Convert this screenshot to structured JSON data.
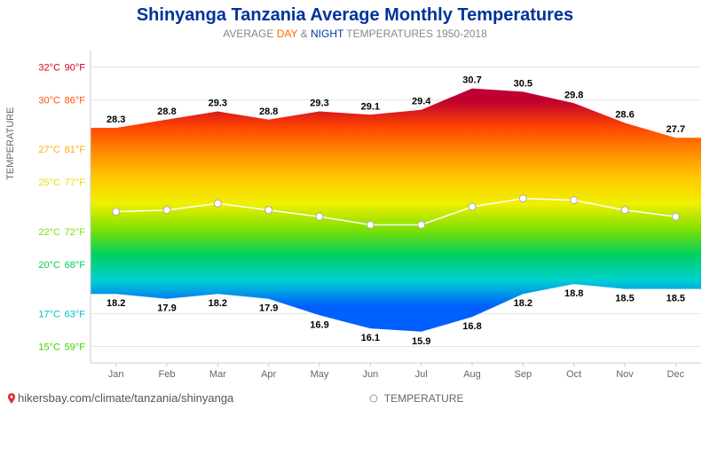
{
  "header": {
    "title": "Shinyanga Tanzania Average Monthly Temperatures",
    "title_color": "#003399",
    "subtitle_prefix": "AVERAGE",
    "subtitle_day": "DAY",
    "subtitle_amp": "&",
    "subtitle_night": "NIGHT",
    "subtitle_suffix": "TEMPERATURES 1950-2018"
  },
  "axis": {
    "ylabel": "TEMPERATURE",
    "yticks": [
      {
        "c": "15°C",
        "f": "59°F",
        "v": 15,
        "color": "#40d000"
      },
      {
        "c": "17°C",
        "f": "63°F",
        "v": 17,
        "color": "#00c0c0"
      },
      {
        "c": "20°C",
        "f": "68°F",
        "v": 20,
        "color": "#00d05a"
      },
      {
        "c": "22°C",
        "f": "72°F",
        "v": 22,
        "color": "#80e000"
      },
      {
        "c": "25°C",
        "f": "77°F",
        "v": 25,
        "color": "#e8e000"
      },
      {
        "c": "27°C",
        "f": "81°F",
        "v": 27,
        "color": "#ffb000"
      },
      {
        "c": "30°C",
        "f": "86°F",
        "v": 30,
        "color": "#ff5000"
      },
      {
        "c": "32°C",
        "f": "90°F",
        "v": 32,
        "color": "#d00020"
      }
    ],
    "ymin": 14,
    "ymax": 33,
    "gridline_color": "#e5e5e5",
    "axis_color": "#cccccc",
    "tick_fontsize": 11
  },
  "chart": {
    "type": "area",
    "months": [
      "Jan",
      "Feb",
      "Mar",
      "Apr",
      "May",
      "Jun",
      "Jul",
      "Aug",
      "Sep",
      "Oct",
      "Nov",
      "Dec"
    ],
    "day": [
      28.3,
      28.8,
      29.3,
      28.8,
      29.3,
      29.1,
      29.4,
      30.7,
      30.5,
      29.8,
      28.6,
      27.7
    ],
    "night": [
      18.2,
      17.9,
      18.2,
      17.9,
      16.9,
      16.1,
      15.9,
      16.8,
      18.2,
      18.8,
      18.5,
      18.5
    ],
    "avg": [
      23.2,
      23.3,
      23.7,
      23.3,
      22.9,
      22.4,
      22.4,
      23.5,
      24.0,
      23.9,
      23.3,
      22.9
    ],
    "avg_line_color": "#ffffff",
    "avg_marker_stroke": "#aaaaaa",
    "label_fontsize": 11,
    "gradient_stops": [
      {
        "v": 32,
        "c": "#c00030"
      },
      {
        "v": 30,
        "c": "#ff4400"
      },
      {
        "v": 28,
        "c": "#ff8c00"
      },
      {
        "v": 26,
        "c": "#ffc800"
      },
      {
        "v": 24,
        "c": "#f0f000"
      },
      {
        "v": 22,
        "c": "#80e000"
      },
      {
        "v": 20,
        "c": "#00d060"
      },
      {
        "v": 18,
        "c": "#00d0d0"
      },
      {
        "v": 16,
        "c": "#0060ff"
      }
    ]
  },
  "legend": {
    "label": "TEMPERATURE"
  },
  "footer": {
    "url": "hikersbay.com/climate/tanzania/shinyanga"
  }
}
